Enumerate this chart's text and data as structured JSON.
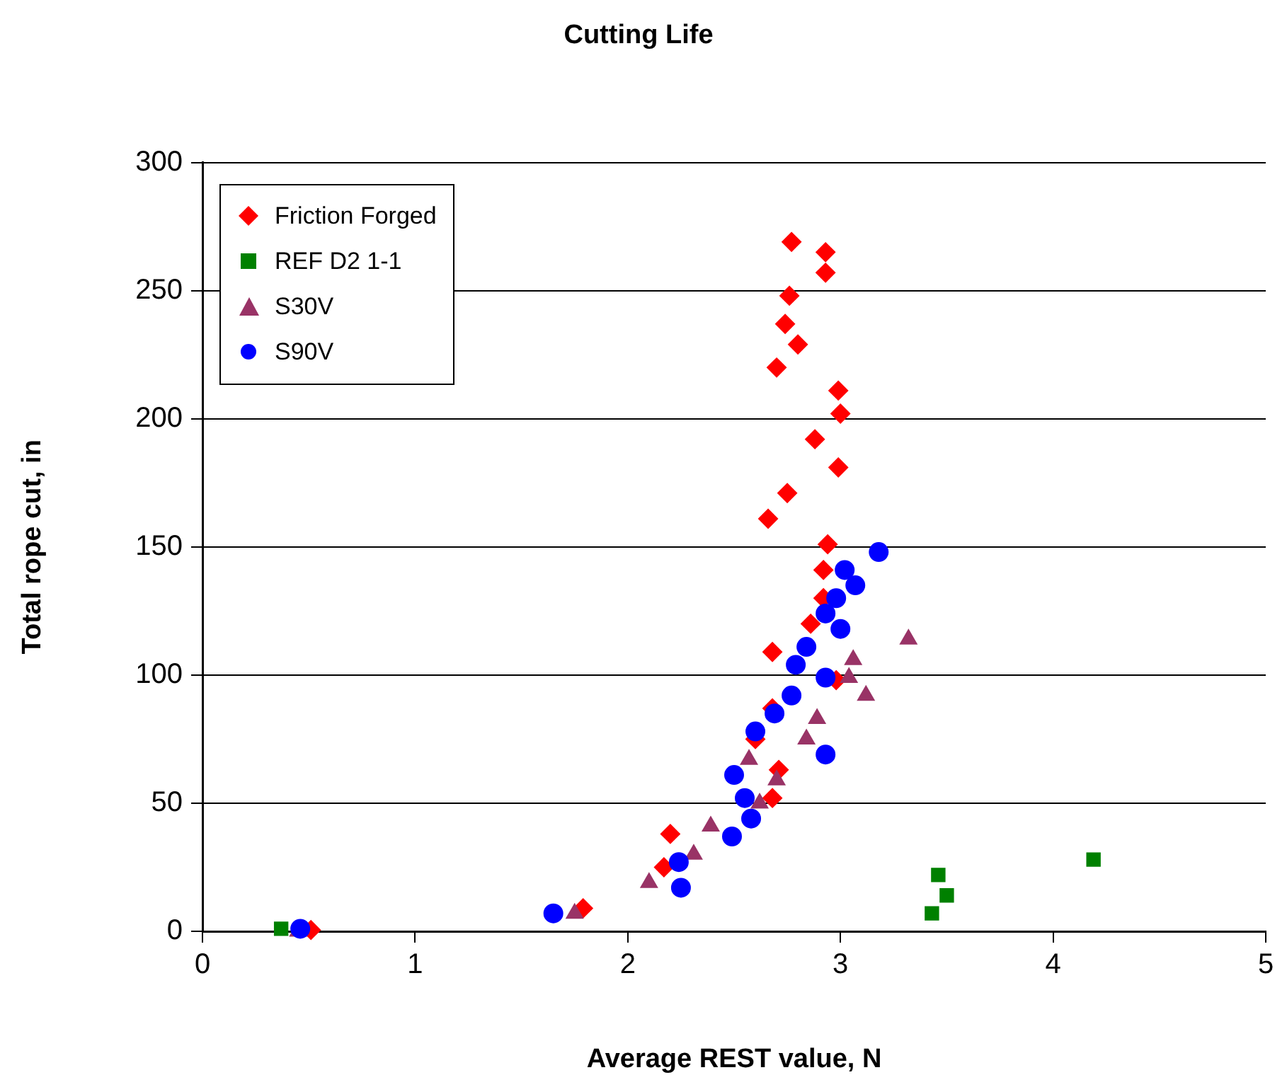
{
  "chart_data": {
    "type": "scatter",
    "title": "Cutting Life",
    "xlabel": "Average REST value, N",
    "ylabel": "Total rope cut, in",
    "xlim": [
      0,
      5
    ],
    "xticks": [
      0,
      1,
      2,
      3,
      4,
      5
    ],
    "ylim": [
      0,
      300
    ],
    "yticks": [
      0,
      50,
      100,
      150,
      200,
      250,
      300
    ],
    "grid": "y",
    "legend": "top left",
    "series": [
      {
        "name": "Friction Forged",
        "color": "#ff0000",
        "marker": "diamond",
        "x": [
          2.77,
          2.93,
          2.93,
          2.76,
          2.74,
          2.8,
          2.7,
          2.99,
          3.0,
          2.88,
          2.99,
          2.75,
          2.66,
          2.94,
          2.92,
          2.92,
          2.86,
          2.68,
          2.98,
          2.68,
          2.6,
          2.71,
          2.68,
          2.2,
          2.17,
          1.79,
          0.51
        ],
        "values": [
          269,
          265,
          257,
          248,
          237,
          229,
          220,
          211,
          202,
          192,
          181,
          171,
          161,
          151,
          141,
          130,
          120,
          109,
          98,
          87,
          75,
          63,
          52,
          38,
          25,
          9,
          0.5
        ]
      },
      {
        "name": "REF D2 1-1",
        "color": "#008000",
        "marker": "square",
        "x": [
          0.37,
          3.46,
          3.5,
          3.43,
          4.19
        ],
        "values": [
          1,
          22,
          14,
          7,
          28
        ]
      },
      {
        "name": "S30V",
        "color": "#993366",
        "marker": "triangle",
        "x": [
          3.32,
          3.06,
          3.04,
          3.12,
          2.89,
          2.84,
          2.57,
          2.7,
          2.62,
          2.39,
          2.31,
          2.1,
          1.75,
          0.45
        ],
        "values": [
          114,
          106,
          99,
          92,
          83,
          75,
          67,
          59,
          50,
          41,
          30,
          19,
          7,
          0
        ]
      },
      {
        "name": "S90V",
        "color": "#0000ff",
        "marker": "circle",
        "x": [
          3.18,
          3.02,
          3.07,
          2.98,
          2.93,
          3.0,
          2.84,
          2.79,
          2.93,
          2.77,
          2.69,
          2.6,
          2.93,
          2.5,
          2.55,
          2.58,
          2.49,
          2.24,
          2.25,
          1.65,
          0.46
        ],
        "values": [
          148,
          141,
          135,
          130,
          124,
          118,
          111,
          104,
          99,
          92,
          85,
          78,
          69,
          61,
          52,
          44,
          37,
          27,
          17,
          7,
          1
        ]
      }
    ]
  }
}
